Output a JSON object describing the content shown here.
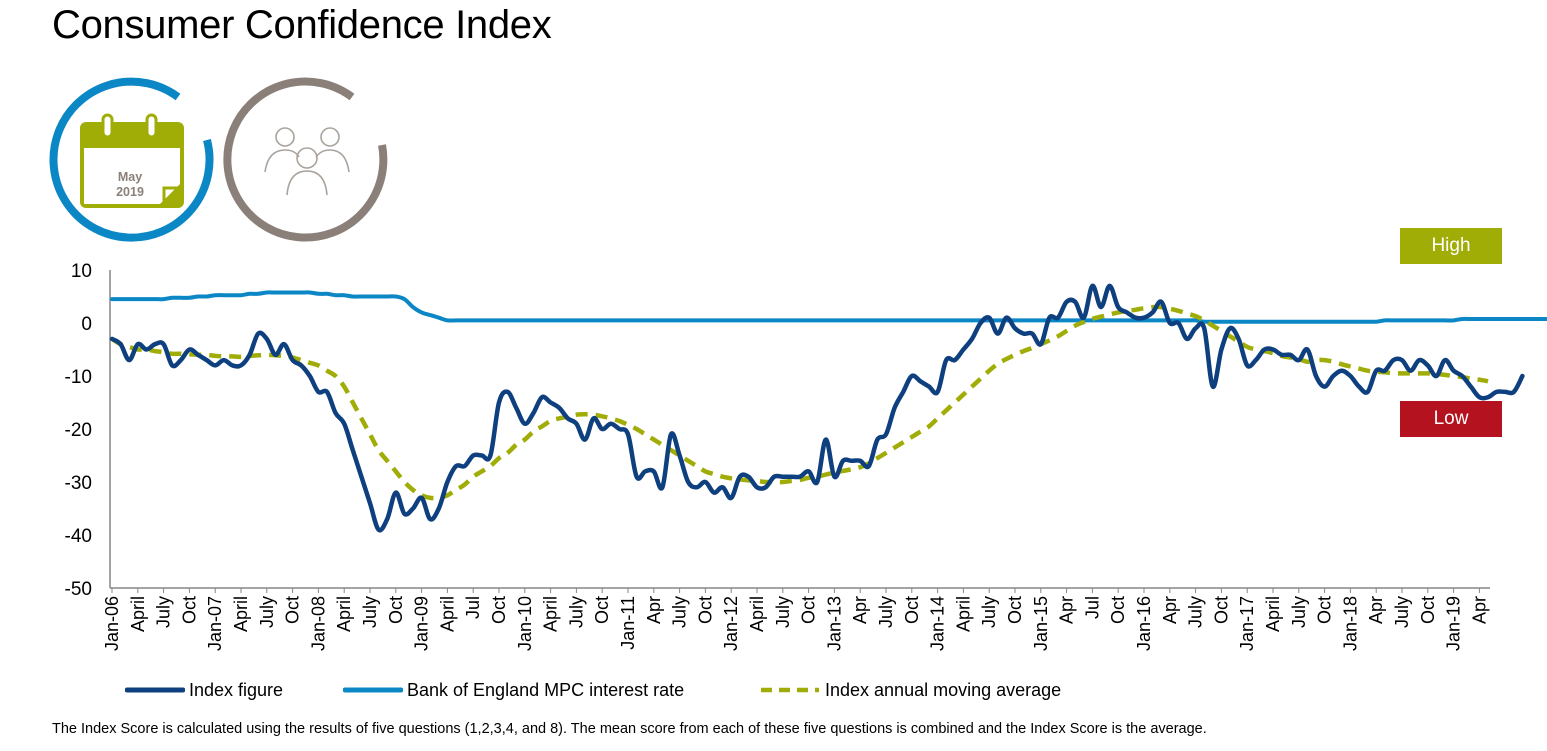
{
  "title": "Consumer Confidence Index",
  "calendar": {
    "month": "May",
    "year": "2019"
  },
  "badges": {
    "high": {
      "label": "High",
      "color": "#a1ad07"
    },
    "low": {
      "label": "Low",
      "color": "#b5121f"
    }
  },
  "icons": [
    "calendar-icon",
    "people-icon"
  ],
  "footnote": "The Index Score is calculated using the results of five questions (1,2,3,4, and 8). The mean score from each of these five questions is combined and the Index Score is the average.",
  "chart_data": {
    "type": "line",
    "title": "",
    "xlabel": "",
    "ylabel": "",
    "ylim": [
      -50,
      10
    ],
    "yticks": [
      10,
      0,
      -10,
      -20,
      -30,
      -40,
      -50
    ],
    "grid": false,
    "legend_position": "bottom",
    "x_tick_labels": [
      "Jan-06",
      "April",
      "July",
      "Oct",
      "Jan-07",
      "April",
      "July",
      "Oct",
      "Jan-08",
      "April",
      "July",
      "Oct",
      "Jan-09",
      "April",
      "Jul",
      "Oct",
      "Jan-10",
      "April",
      "July",
      "Oct",
      "Jan-11",
      "Apr",
      "July",
      "Oct",
      "Jan-12",
      "April",
      "July",
      "Oct",
      "Jan-13",
      "Apr",
      "July",
      "Oct",
      "Jan-14",
      "April",
      "July",
      "Oct",
      "Jan-15",
      "Apr",
      "Jul",
      "Oct",
      "Jan-16",
      "Apr",
      "July",
      "Oct",
      "Jan-17",
      "April",
      "July",
      "Oct",
      "Jan-18",
      "Apr",
      "July",
      "Oct",
      "Jan-19",
      "Apr"
    ],
    "x_start": "2006-01",
    "series": [
      {
        "name": "Index figure",
        "color": "#0e3f7e",
        "style": "solid",
        "values": [
          -3,
          -4,
          -7,
          -4,
          -5,
          -4,
          -4,
          -8,
          -7,
          -5,
          -6,
          -7,
          -8,
          -7,
          -8,
          -8,
          -6,
          -2,
          -3,
          -6,
          -4,
          -7,
          -8,
          -10,
          -13,
          -13,
          -17,
          -19,
          -24,
          -29,
          -34,
          -39,
          -37,
          -32,
          -36,
          -35,
          -33,
          -37,
          -35,
          -30,
          -27,
          -27,
          -25,
          -25,
          -25,
          -15,
          -13,
          -16,
          -19,
          -17,
          -14,
          -15,
          -16,
          -18,
          -19,
          -22,
          -18,
          -20,
          -19,
          -20,
          -21,
          -29,
          -28,
          -28,
          -31,
          -21,
          -25,
          -30,
          -31,
          -30,
          -32,
          -31,
          -33,
          -29,
          -29,
          -31,
          -31,
          -29,
          -29,
          -29,
          -29,
          -28,
          -30,
          -22,
          -29,
          -26,
          -26,
          -26,
          -27,
          -22,
          -21,
          -16,
          -13,
          -10,
          -11,
          -12,
          -13,
          -7,
          -7,
          -5,
          -3,
          0,
          1,
          -2,
          1,
          -1,
          -2,
          -2,
          -4,
          1,
          1,
          4,
          4,
          1,
          7,
          3,
          7,
          3,
          2,
          1,
          1,
          2,
          4,
          0,
          0,
          -3,
          -1,
          -1,
          -12,
          -5,
          -1,
          -3,
          -8,
          -7,
          -5,
          -5,
          -6,
          -6,
          -7,
          -5,
          -10,
          -12,
          -10,
          -9,
          -10,
          -12,
          -13,
          -9,
          -9,
          -7,
          -7,
          -9,
          -7,
          -8,
          -10,
          -7,
          -9,
          -10,
          -12,
          -14,
          -14,
          -13,
          -13,
          -13,
          -10
        ]
      },
      {
        "name": "Bank of England MPC interest rate",
        "color": "#0b87c6",
        "style": "solid",
        "values": [
          4.5,
          4.5,
          4.5,
          4.5,
          4.5,
          4.5,
          4.5,
          4.75,
          4.75,
          4.75,
          5,
          5,
          5.25,
          5.25,
          5.25,
          5.25,
          5.5,
          5.5,
          5.75,
          5.75,
          5.75,
          5.75,
          5.75,
          5.75,
          5.5,
          5.5,
          5.25,
          5.25,
          5,
          5,
          5,
          5,
          5,
          5,
          4.5,
          3,
          2,
          1.5,
          1,
          0.5,
          0.5,
          0.5,
          0.5,
          0.5,
          0.5,
          0.5,
          0.5,
          0.5,
          0.5,
          0.5,
          0.5,
          0.5,
          0.5,
          0.5,
          0.5,
          0.5,
          0.5,
          0.5,
          0.5,
          0.5,
          0.5,
          0.5,
          0.5,
          0.5,
          0.5,
          0.5,
          0.5,
          0.5,
          0.5,
          0.5,
          0.5,
          0.5,
          0.5,
          0.5,
          0.5,
          0.5,
          0.5,
          0.5,
          0.5,
          0.5,
          0.5,
          0.5,
          0.5,
          0.5,
          0.5,
          0.5,
          0.5,
          0.5,
          0.5,
          0.5,
          0.5,
          0.5,
          0.5,
          0.5,
          0.5,
          0.5,
          0.5,
          0.5,
          0.5,
          0.5,
          0.5,
          0.5,
          0.5,
          0.5,
          0.5,
          0.5,
          0.5,
          0.5,
          0.5,
          0.5,
          0.5,
          0.5,
          0.5,
          0.5,
          0.5,
          0.5,
          0.5,
          0.5,
          0.5,
          0.5,
          0.5,
          0.5,
          0.5,
          0.5,
          0.5,
          0.5,
          0.5,
          0.25,
          0.25,
          0.25,
          0.25,
          0.25,
          0.25,
          0.25,
          0.25,
          0.25,
          0.25,
          0.25,
          0.25,
          0.25,
          0.25,
          0.25,
          0.25,
          0.25,
          0.25,
          0.25,
          0.25,
          0.25,
          0.5,
          0.5,
          0.5,
          0.5,
          0.5,
          0.5,
          0.5,
          0.5,
          0.5,
          0.75,
          0.75,
          0.75,
          0.75,
          0.75,
          0.75,
          0.75,
          0.75,
          0.75,
          0.75,
          0.75,
          0.75
        ]
      },
      {
        "name": "Index annual moving average",
        "color": "#a1ad07",
        "style": "dashed",
        "values": [
          -3,
          -4,
          -4.5,
          -5,
          -5,
          -5.3,
          -5.5,
          -5.8,
          -5.8,
          -5.9,
          -6,
          -6,
          -6.2,
          -6.3,
          -6.3,
          -6.4,
          -6.2,
          -6.1,
          -6,
          -6.1,
          -6.2,
          -6.5,
          -7,
          -7.5,
          -8,
          -9,
          -10,
          -12,
          -15,
          -18,
          -21,
          -24,
          -26,
          -28,
          -30,
          -31.5,
          -32.5,
          -33,
          -33,
          -32.5,
          -31.5,
          -30.5,
          -29,
          -28,
          -27,
          -25.5,
          -24.5,
          -23,
          -22,
          -20.5,
          -19.5,
          -18.5,
          -18,
          -17.7,
          -17.3,
          -17.2,
          -17.3,
          -17.6,
          -18,
          -18.5,
          -19.2,
          -20,
          -21,
          -22,
          -23,
          -24,
          -25,
          -26,
          -27,
          -28,
          -28.5,
          -29,
          -29.3,
          -29.5,
          -29.7,
          -29.8,
          -30,
          -30,
          -30,
          -29.8,
          -29.6,
          -29.2,
          -29,
          -28.6,
          -28.2,
          -27.9,
          -27.6,
          -27.2,
          -26.5,
          -25.5,
          -24.5,
          -23.5,
          -22.5,
          -21.5,
          -20.5,
          -19.5,
          -18,
          -16.5,
          -15,
          -13.5,
          -12,
          -10.5,
          -9,
          -7.7,
          -6.8,
          -6,
          -5.3,
          -4.7,
          -4,
          -3.3,
          -2.5,
          -1.5,
          -0.5,
          0.2,
          0.8,
          1.2,
          1.6,
          2,
          2.3,
          2.5,
          2.8,
          3,
          3,
          2.7,
          2.3,
          1.8,
          1.3,
          0.5,
          -0.5,
          -1.5,
          -2.5,
          -3.5,
          -4.5,
          -5,
          -5.3,
          -5.7,
          -6.2,
          -6.5,
          -6.8,
          -7.3,
          -7,
          -7,
          -7.3,
          -7.8,
          -8.2,
          -8.6,
          -9,
          -9.2,
          -9.3,
          -9.5,
          -9.5,
          -9.5,
          -9.5,
          -9.5,
          -9.6,
          -9.8,
          -10,
          -10.2,
          -10.5,
          -10.7,
          -11
        ]
      }
    ]
  }
}
